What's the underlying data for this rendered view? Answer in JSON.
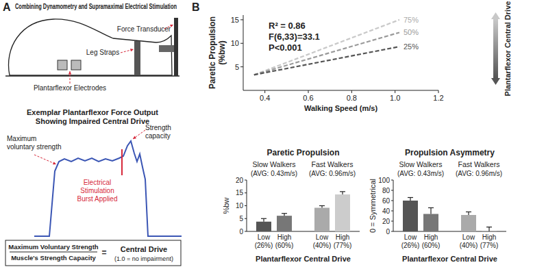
{
  "panels": [
    "A",
    "B"
  ],
  "diagram": {
    "title": "Combining Dynamometry and Supramaximal Electrical Stimulation",
    "force_transducer": "Force Transducer",
    "leg_straps": "Leg Straps",
    "electrodes": "Plantarflexor Electrodes",
    "trace_title": [
      "Exemplar Plantarflexor Force Output",
      "Showing Impaired Central Drive"
    ],
    "voluntary_label": [
      "Maximum",
      "voluntary strength"
    ],
    "capacity_label": [
      "Strength",
      "capacity"
    ],
    "stimulation_label": [
      "Electrical",
      "Stimulation",
      "Burst Applied"
    ],
    "formula": {
      "numerator": "Maximum Voluntary Strength",
      "denominator": "Muscle's Strength Capacity",
      "equals": "=",
      "result": "Central Drive",
      "note": "(1.0 = no impairment)"
    }
  },
  "chart_data": [
    {
      "type": "line",
      "x_label": "Walking Speed (m/s)",
      "y_label": [
        "Paretic Propulsion",
        "(%bw)"
      ],
      "annotations": [
        "R² = 0.86",
        "F(6,33)=33.1",
        "P<0.001"
      ],
      "legend_title": "Plantarflexor Central Drive",
      "x": [
        0.35,
        1.02
      ],
      "series": [
        {
          "name": "75%",
          "color": "#c8c8c8",
          "line_style": "dashed",
          "values": [
            3.3,
            15.0
          ]
        },
        {
          "name": "50%",
          "color": "#9a9a9a",
          "line_style": "dashed",
          "values": [
            3.3,
            12.3
          ]
        },
        {
          "name": "25%",
          "color": "#555555",
          "line_style": "dashed",
          "values": [
            3.3,
            9.3
          ]
        }
      ],
      "xlim": [
        0.3,
        1.2
      ],
      "xticks": [
        0.4,
        0.6,
        0.8,
        {
          "value": 1,
          "label": "1.0"
        },
        1.2
      ],
      "ylim": [
        0,
        16
      ],
      "yticks": [
        5,
        10,
        15
      ]
    },
    {
      "type": "bar",
      "title": "Paretic Propulsion",
      "y_label": "%bw",
      "x_label": "Plantarflexor Central Drive",
      "group_labels": [
        "Slow Walkers",
        "Fast Walkers"
      ],
      "group_notes": [
        "(AVG: 0.43m/s)",
        "(AVG: 0.96m/s)"
      ],
      "categories": [
        "Low (26%)",
        "High (60%)",
        "Low (40%)",
        "High (77%)"
      ],
      "values": [
        3.8,
        6.1,
        9.2,
        14.4
      ],
      "errors": [
        1.2,
        0.9,
        0.8,
        1.1
      ],
      "colors": [
        "#555555",
        "#777777",
        "#aaaaaa",
        "#cccccc"
      ],
      "ylim": [
        0,
        20
      ],
      "yticks": [
        0,
        5,
        10,
        15,
        20
      ]
    },
    {
      "type": "bar",
      "title": "Propulsion Asymmetry",
      "y_label": "0 = Symmetrical",
      "x_label": "Plantarflexor Central Drive",
      "group_labels": [
        "Slow Walkers",
        "Fast Walkers"
      ],
      "group_notes": [
        "(AVG: 0.43m/s)",
        "(AVG: 0.96m/s)"
      ],
      "categories": [
        "Low (26%)",
        "High (60%)",
        "Low (40%)",
        "High (77%)"
      ],
      "values": [
        60,
        34,
        32,
        0.5
      ],
      "errors": [
        6,
        12,
        6,
        8
      ],
      "colors": [
        "#555555",
        "#777777",
        "#aaaaaa",
        "#cccccc"
      ],
      "ylim": [
        0,
        100
      ],
      "yticks": [
        0,
        20,
        40,
        60,
        80,
        100
      ]
    }
  ]
}
